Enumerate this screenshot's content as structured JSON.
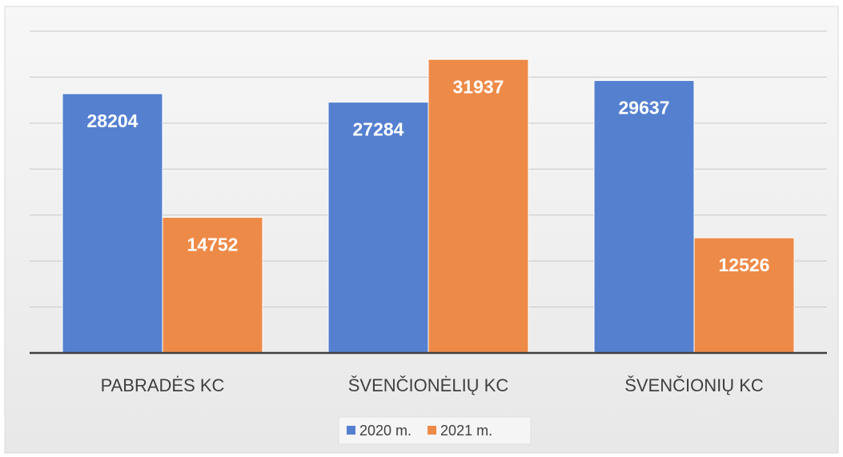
{
  "chart_data": {
    "type": "bar",
    "categories": [
      "PABRADĖS KC",
      "ŠVENČIONĖLIŲ KC",
      "ŠVENČIONIŲ KC"
    ],
    "series": [
      {
        "name": "2020 m.",
        "color": "#5580d0",
        "values": [
          28204,
          27284,
          29637
        ]
      },
      {
        "name": "2021 m.",
        "color": "#ee8a48",
        "values": [
          14752,
          31937,
          12526
        ]
      }
    ],
    "ylim": [
      0,
      35000
    ],
    "yticks": [
      0,
      5000,
      10000,
      15000,
      20000,
      25000,
      30000,
      35000
    ],
    "grid": true,
    "legend": "bottom"
  }
}
